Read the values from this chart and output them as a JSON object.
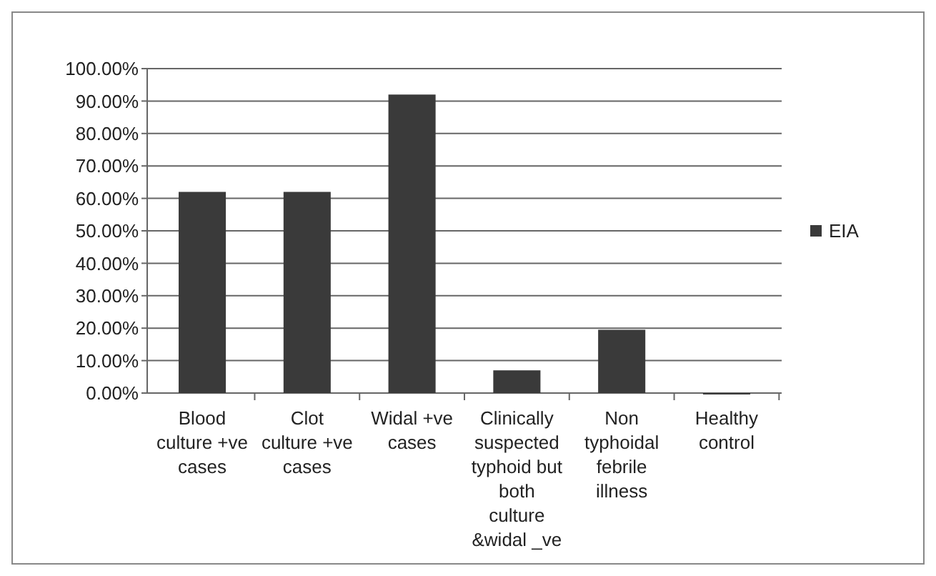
{
  "chart_data": {
    "type": "bar",
    "categories": [
      "Blood culture +ve cases",
      "Clot culture +ve cases",
      "Widal +ve cases",
      "Clinically suspected typhoid but both culture &widal _ve",
      "Non typhoidal febrile illness",
      "Healthy control"
    ],
    "series": [
      {
        "name": "EIA",
        "color": "#3a3a3a",
        "values": [
          62,
          62,
          92,
          7,
          19.5,
          0
        ]
      }
    ],
    "ylim": [
      0,
      100
    ],
    "yticks": [
      {
        "value": 0,
        "label": "0.00%"
      },
      {
        "value": 10,
        "label": "10.00%"
      },
      {
        "value": 20,
        "label": "20.00%"
      },
      {
        "value": 30,
        "label": "30.00%"
      },
      {
        "value": 40,
        "label": "40.00%"
      },
      {
        "value": 50,
        "label": "50.00%"
      },
      {
        "value": 60,
        "label": "60.00%"
      },
      {
        "value": 70,
        "label": "70.00%"
      },
      {
        "value": 80,
        "label": "80.00%"
      },
      {
        "value": 90,
        "label": "90.00%"
      },
      {
        "value": 100,
        "label": "100.00%"
      }
    ],
    "grid": "y",
    "legend": "right"
  }
}
